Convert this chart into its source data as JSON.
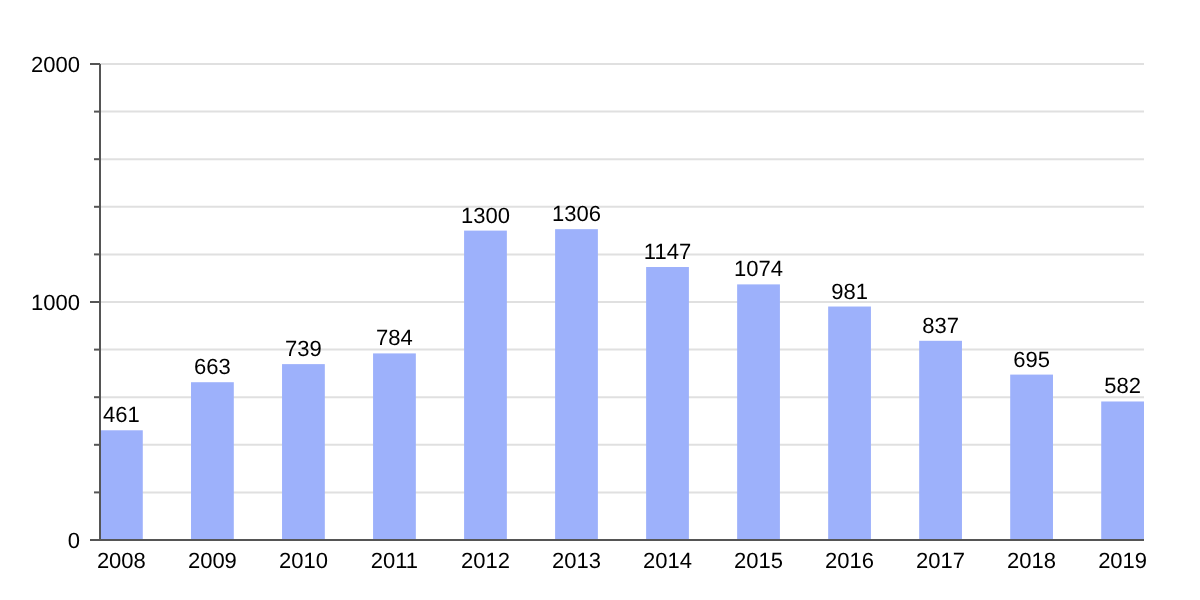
{
  "chart_data": {
    "type": "bar",
    "categories": [
      "2008",
      "2009",
      "2010",
      "2011",
      "2012",
      "2013",
      "2014",
      "2015",
      "2016",
      "2017",
      "2018",
      "2019"
    ],
    "values": [
      461,
      663,
      739,
      784,
      1300,
      1306,
      1147,
      1074,
      981,
      837,
      695,
      582
    ],
    "color": "#9db1fb",
    "ylim": [
      0,
      2000
    ],
    "yticks": [
      0,
      {
        "value": 200,
        "label": null
      },
      {
        "value": 400,
        "label": null
      },
      {
        "value": 600,
        "label": null
      },
      {
        "value": 800,
        "label": null
      },
      1000,
      {
        "value": 1200,
        "label": null
      },
      {
        "value": 1400,
        "label": null
      },
      {
        "value": 1600,
        "label": null
      },
      {
        "value": 1800,
        "label": null
      },
      2000
    ],
    "grid": true,
    "data_labels": true
  }
}
